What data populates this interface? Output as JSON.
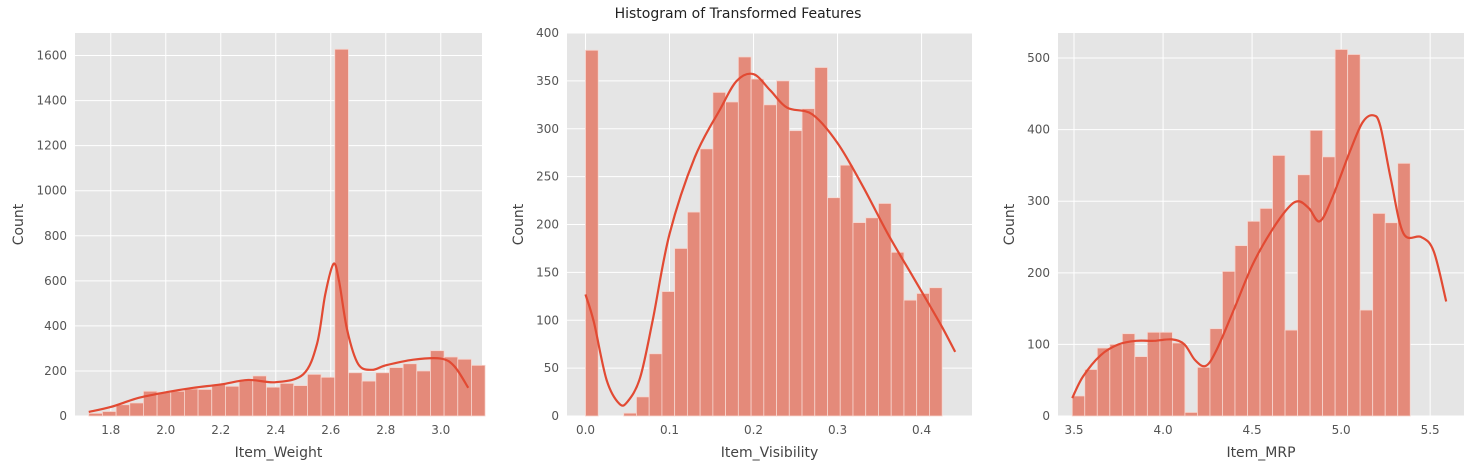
{
  "figure": {
    "title": "Histogram of Transformed Features"
  },
  "colors": {
    "panel_bg": "#e5e5e5",
    "grid": "#ffffff",
    "bar_fill": "#e48a7a",
    "bar_edge": "#f7d7d0",
    "kde_line": "#e24a33",
    "tick_text": "#555555",
    "label_text": "#444444"
  },
  "chart_data": [
    {
      "type": "bar",
      "xlabel": "Item_Weight",
      "ylabel": "Count",
      "xlim": [
        1.67,
        3.15
      ],
      "ylim": [
        0,
        1700
      ],
      "xticks": [
        1.8,
        2.0,
        2.2,
        2.4,
        2.6,
        2.8,
        3.0
      ],
      "xtick_labels": [
        "1.8",
        "2.0",
        "2.2",
        "2.4",
        "2.6",
        "2.8",
        "3.0"
      ],
      "yticks": [
        0,
        200,
        400,
        600,
        800,
        1000,
        1200,
        1400,
        1600
      ],
      "ytick_labels": [
        "0",
        "200",
        "400",
        "600",
        "800",
        "1000",
        "1200",
        "1400",
        "1600"
      ],
      "bin_start": 1.72,
      "bin_width": 0.0497,
      "counts": [
        12,
        20,
        50,
        58,
        110,
        105,
        110,
        120,
        118,
        140,
        132,
        160,
        178,
        128,
        145,
        135,
        185,
        172,
        1628,
        192,
        155,
        192,
        215,
        232,
        200,
        290,
        262,
        252,
        225
      ],
      "kde": {
        "x": [
          1.72,
          1.8,
          1.9,
          2.0,
          2.1,
          2.2,
          2.3,
          2.4,
          2.5,
          2.55,
          2.58,
          2.61,
          2.63,
          2.66,
          2.7,
          2.75,
          2.8,
          2.9,
          3.0,
          3.05,
          3.1
        ],
        "y": [
          18,
          40,
          80,
          105,
          125,
          140,
          160,
          150,
          185,
          320,
          540,
          675,
          600,
          380,
          230,
          205,
          225,
          250,
          255,
          220,
          125
        ]
      }
    },
    {
      "type": "bar",
      "xlabel": "Item_Visibility",
      "ylabel": "Count",
      "xlim": [
        -0.022,
        0.46
      ],
      "ylim": [
        0,
        400
      ],
      "xticks": [
        0.0,
        0.1,
        0.2,
        0.3,
        0.4
      ],
      "xtick_labels": [
        "0.0",
        "0.1",
        "0.2",
        "0.3",
        "0.4"
      ],
      "yticks": [
        0,
        50,
        100,
        150,
        200,
        250,
        300,
        350,
        400
      ],
      "ytick_labels": [
        "0",
        "50",
        "100",
        "150",
        "200",
        "250",
        "300",
        "350",
        "400"
      ],
      "bin_start": 0.0,
      "bin_width": 0.01516,
      "counts": [
        382,
        0,
        0,
        3,
        20,
        65,
        130,
        175,
        213,
        279,
        338,
        328,
        375,
        352,
        325,
        350,
        298,
        321,
        364,
        228,
        262,
        202,
        207,
        222,
        171,
        121,
        128,
        134
      ],
      "kde": {
        "x": [
          0.0,
          0.01,
          0.025,
          0.04,
          0.05,
          0.065,
          0.08,
          0.1,
          0.13,
          0.16,
          0.18,
          0.2,
          0.22,
          0.24,
          0.27,
          0.3,
          0.33,
          0.36,
          0.39,
          0.41,
          0.425,
          0.44
        ],
        "y": [
          127,
          98,
          38,
          13,
          15,
          40,
          100,
          190,
          270,
          320,
          350,
          357,
          340,
          322,
          315,
          285,
          240,
          190,
          145,
          115,
          92,
          67
        ]
      }
    },
    {
      "type": "bar",
      "xlabel": "Item_MRP",
      "ylabel": "Count",
      "xlim": [
        3.41,
        5.69
      ],
      "ylim": [
        0,
        535
      ],
      "xticks": [
        3.5,
        4.0,
        4.5,
        5.0,
        5.5
      ],
      "xtick_labels": [
        "3.5",
        "4.0",
        "4.5",
        "5.0",
        "5.5"
      ],
      "yticks": [
        0,
        100,
        200,
        300,
        400,
        500
      ],
      "ytick_labels": [
        "0",
        "100",
        "200",
        "300",
        "400",
        "500"
      ],
      "bin_start": 3.49,
      "bin_width": 0.0703,
      "counts": [
        28,
        65,
        95,
        100,
        115,
        83,
        117,
        117,
        102,
        5,
        68,
        122,
        202,
        238,
        272,
        290,
        364,
        120,
        337,
        399,
        362,
        512,
        505,
        148,
        283,
        270,
        353
      ],
      "kde": {
        "x": [
          3.49,
          3.55,
          3.65,
          3.75,
          3.85,
          3.95,
          4.05,
          4.12,
          4.18,
          4.24,
          4.3,
          4.4,
          4.5,
          4.6,
          4.7,
          4.76,
          4.82,
          4.88,
          4.95,
          5.05,
          5.12,
          5.18,
          5.22,
          5.28,
          5.35,
          5.45,
          5.52,
          5.59
        ],
        "y": [
          25,
          55,
          85,
          100,
          105,
          105,
          107,
          100,
          78,
          70,
          92,
          150,
          210,
          255,
          290,
          300,
          290,
          272,
          305,
          370,
          410,
          420,
          405,
          330,
          255,
          250,
          230,
          160
        ]
      }
    }
  ]
}
